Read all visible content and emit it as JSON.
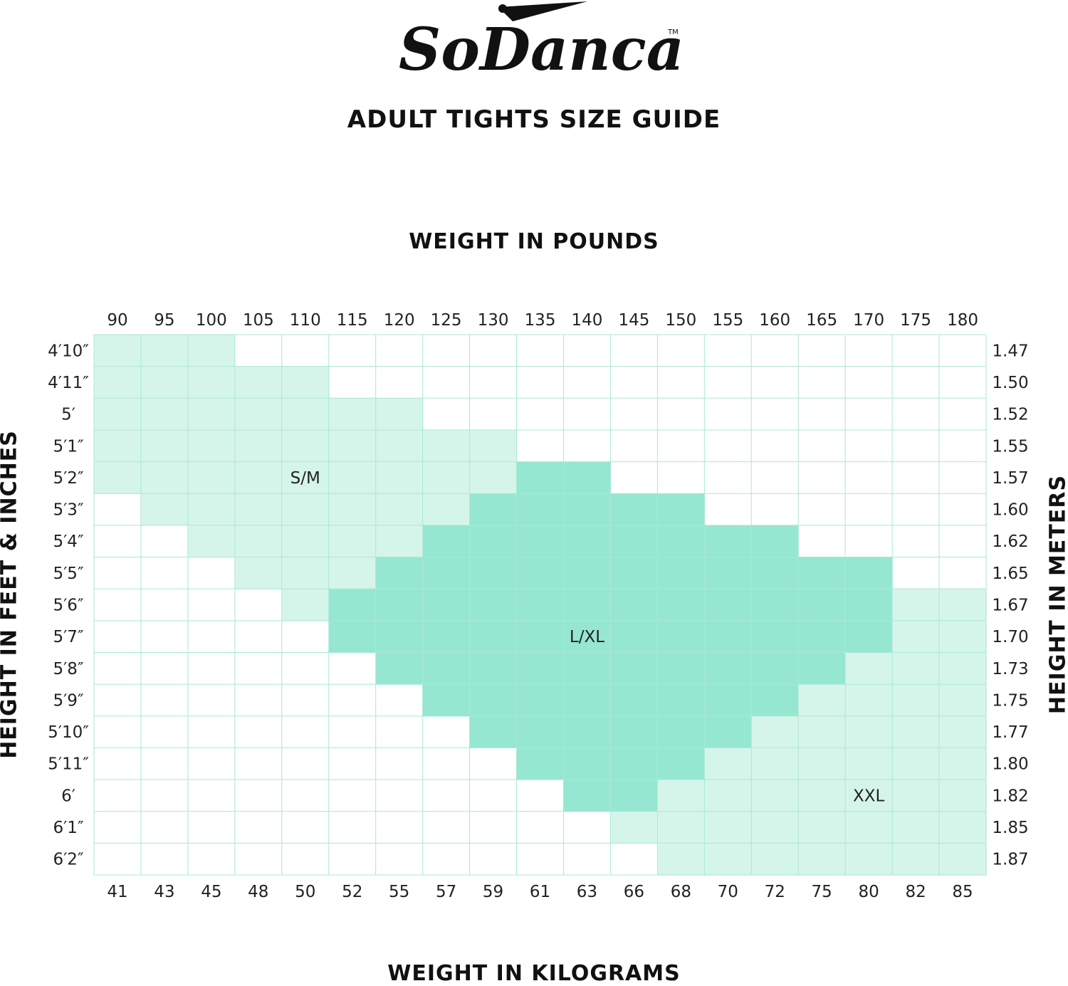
{
  "brand": {
    "logo_text": "SoDanca",
    "trademark": "TM"
  },
  "title": "ADULT TIGHTS SIZE GUIDE",
  "colors": {
    "sm": "#d6f5ea",
    "lxl": "#96e7d2",
    "xxl": "#d6f5ea",
    "grid": "#a8e8d6",
    "text": "#111111"
  },
  "chart_data": {
    "type": "heatmap",
    "title": "ADULT TIGHTS SIZE GUIDE",
    "x_top_label": "WEIGHT IN POUNDS",
    "x_bottom_label": "WEIGHT IN KILOGRAMS",
    "y_left_label": "HEIGHT IN FEET & INCHES",
    "y_right_label": "HEIGHT IN METERS",
    "x_pounds": [
      "90",
      "95",
      "100",
      "105",
      "110",
      "115",
      "120",
      "125",
      "130",
      "135",
      "140",
      "145",
      "150",
      "155",
      "160",
      "165",
      "170",
      "175",
      "180"
    ],
    "x_kilograms": [
      "41",
      "43",
      "45",
      "48",
      "50",
      "52",
      "55",
      "57",
      "59",
      "61",
      "63",
      "66",
      "68",
      "70",
      "72",
      "75",
      "80",
      "82",
      "85"
    ],
    "y_feet_inches": [
      "4′10″",
      "4′11″",
      "5′",
      "5′1″",
      "5′2″",
      "5′3″",
      "5′4″",
      "5′5″",
      "5′6″",
      "5′7″",
      "5′8″",
      "5′9″",
      "5′10″",
      "5′11″",
      "6′",
      "6′1″",
      "6′2″"
    ],
    "y_meters": [
      "1.47",
      "1.50",
      "1.52",
      "1.55",
      "1.57",
      "1.60",
      "1.62",
      "1.65",
      "1.67",
      "1.70",
      "1.73",
      "1.75",
      "1.77",
      "1.80",
      "1.82",
      "1.85",
      "1.87"
    ],
    "sizes": [
      {
        "label": "S/M",
        "key": "sm",
        "label_cell": [
          4,
          4
        ],
        "ranges": [
          [
            0,
            2
          ],
          [
            0,
            4
          ],
          [
            0,
            6
          ],
          [
            0,
            8
          ],
          [
            0,
            8
          ],
          [
            1,
            8
          ],
          [
            2,
            6
          ],
          [
            3,
            5
          ],
          [
            4,
            4
          ]
        ]
      },
      {
        "label": "L/XL",
        "key": "lxl",
        "label_cell": [
          9,
          10
        ],
        "ranges": [
          null,
          null,
          null,
          null,
          [
            9,
            10
          ],
          [
            8,
            12
          ],
          [
            7,
            14
          ],
          [
            6,
            16
          ],
          [
            5,
            16
          ],
          [
            5,
            16
          ],
          [
            6,
            15
          ],
          [
            7,
            14
          ],
          [
            8,
            13
          ],
          [
            9,
            12
          ],
          [
            10,
            11
          ]
        ]
      },
      {
        "label": "XXL",
        "key": "xxl",
        "label_cell": [
          14,
          16
        ],
        "ranges": [
          null,
          null,
          null,
          null,
          null,
          null,
          null,
          null,
          [
            17,
            18
          ],
          [
            17,
            18
          ],
          [
            16,
            18
          ],
          [
            15,
            18
          ],
          [
            14,
            18
          ],
          [
            13,
            18
          ],
          [
            12,
            18
          ],
          [
            11,
            18
          ],
          [
            12,
            18
          ]
        ]
      }
    ]
  }
}
